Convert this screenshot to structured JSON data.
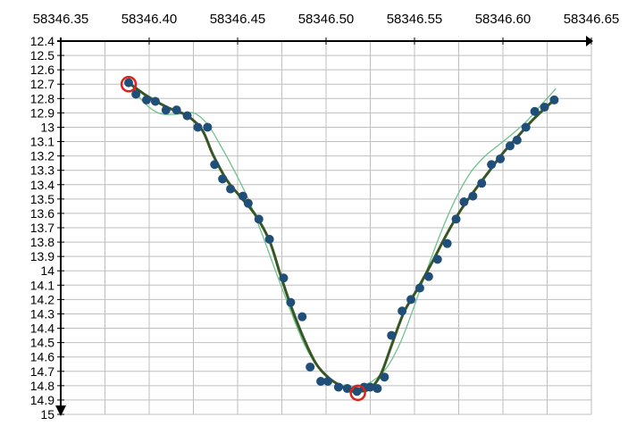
{
  "chart_data": {
    "type": "scatter",
    "title": "",
    "xlabel": "",
    "ylabel": "",
    "x_axis_position": "top",
    "y_inverted": true,
    "xlim": [
      58346.35,
      58346.65
    ],
    "ylim": [
      12.4,
      15.0
    ],
    "x_ticks": [
      58346.35,
      58346.4,
      58346.45,
      58346.5,
      58346.55,
      58346.6,
      58346.65
    ],
    "x_tick_labels": [
      "58346.35",
      "58346.40",
      "58346.45",
      "58346.50",
      "58346.55",
      "58346.60",
      "58346.65"
    ],
    "y_ticks": [
      12.4,
      12.5,
      12.6,
      12.7,
      12.8,
      12.9,
      13.0,
      13.1,
      13.2,
      13.3,
      13.4,
      13.5,
      13.6,
      13.7,
      13.8,
      13.9,
      14.0,
      14.1,
      14.2,
      14.3,
      14.4,
      14.5,
      14.6,
      14.7,
      14.8,
      14.9,
      15.0
    ],
    "y_tick_labels": [
      "12.4",
      "12.5",
      "12.6",
      "12.7",
      "12.8",
      "12.9",
      "13",
      "13.1",
      "13.2",
      "13.3",
      "13.4",
      "13.5",
      "13.6",
      "13.7",
      "13.8",
      "13.9",
      "14",
      "14.1",
      "14.2",
      "14.3",
      "14.4",
      "14.5",
      "14.6",
      "14.7",
      "14.8",
      "14.9",
      "15"
    ],
    "grid": true,
    "series": [
      {
        "kind": "points",
        "color": "#1F4E79",
        "x": [
          58346.3884,
          58346.3925,
          58346.3985,
          58346.4035,
          58346.4095,
          58346.4155,
          58346.4215,
          58346.4275,
          58346.433,
          58346.437,
          58346.4415,
          58346.446,
          58346.453,
          58346.456,
          58346.462,
          58346.468,
          58346.476,
          58346.48,
          58346.4865,
          58346.491,
          58346.497,
          58346.501,
          58346.507,
          58346.512,
          58346.5175,
          58346.5215,
          58346.525,
          58346.529,
          58346.533,
          58346.537,
          58346.543,
          58346.548,
          58346.553,
          58346.558,
          58346.563,
          58346.5685,
          58346.5735,
          58346.578,
          58346.583,
          58346.588,
          58346.5935,
          58346.5985,
          58346.604,
          58346.608,
          58346.613,
          58346.618,
          58346.6235,
          58346.629
        ],
        "y": [
          12.69,
          12.77,
          12.81,
          12.82,
          12.88,
          12.88,
          12.92,
          13.0,
          13.0,
          13.26,
          13.36,
          13.43,
          13.48,
          13.53,
          13.64,
          13.78,
          14.05,
          14.22,
          14.32,
          14.67,
          14.77,
          14.77,
          14.81,
          14.82,
          14.84,
          14.81,
          14.81,
          14.82,
          14.74,
          14.45,
          14.28,
          14.2,
          14.12,
          14.04,
          13.92,
          13.81,
          13.64,
          13.52,
          13.48,
          13.39,
          13.26,
          13.22,
          13.13,
          13.09,
          13.0,
          12.89,
          12.86,
          12.81
        ]
      },
      {
        "kind": "fit",
        "color": "#375623",
        "x": [
          58346.3884,
          58346.3985,
          58346.41,
          58346.4215,
          58346.43,
          58346.436,
          58346.444,
          58346.452,
          58346.46,
          58346.468,
          58346.474,
          58346.48,
          58346.487,
          58346.494,
          58346.501,
          58346.508,
          58346.515,
          58346.519,
          58346.525,
          58346.531,
          58346.537,
          58346.544,
          58346.552,
          58346.56,
          58346.568,
          58346.576,
          58346.584,
          58346.592,
          58346.6,
          58346.608,
          58346.616,
          58346.6235,
          58346.629
        ],
        "y": [
          12.69,
          12.78,
          12.86,
          12.92,
          13.02,
          13.19,
          13.37,
          13.49,
          13.61,
          13.79,
          14.02,
          14.24,
          14.46,
          14.64,
          14.74,
          14.8,
          14.84,
          14.84,
          14.82,
          14.72,
          14.52,
          14.29,
          14.12,
          13.94,
          13.75,
          13.58,
          13.44,
          13.31,
          13.18,
          13.07,
          12.96,
          12.87,
          12.81
        ]
      },
      {
        "kind": "model",
        "color": "#70C18C",
        "x": [
          58346.3884,
          58346.395,
          58346.405,
          58346.415,
          58346.425,
          58346.433,
          58346.44,
          58346.448,
          58346.456,
          58346.464,
          58346.472,
          58346.48,
          58346.488,
          58346.496,
          58346.504,
          58346.512,
          58346.519,
          58346.526,
          58346.534,
          58346.542,
          58346.55,
          58346.558,
          58346.566,
          58346.574,
          58346.582,
          58346.59,
          58346.598,
          58346.606,
          58346.614,
          58346.622,
          58346.63
        ],
        "y": [
          12.65,
          12.8,
          12.9,
          12.91,
          12.9,
          12.98,
          13.12,
          13.3,
          13.5,
          13.75,
          14.02,
          14.28,
          14.52,
          14.68,
          14.77,
          14.8,
          14.8,
          14.77,
          14.68,
          14.5,
          14.24,
          13.96,
          13.7,
          13.48,
          13.31,
          13.2,
          13.12,
          13.04,
          12.95,
          12.84,
          12.73
        ]
      }
    ],
    "markers": [
      {
        "x": 58346.3884,
        "y": 12.7,
        "color": "#E0201B"
      },
      {
        "x": 58346.518,
        "y": 14.85,
        "color": "#E0201B"
      }
    ]
  }
}
